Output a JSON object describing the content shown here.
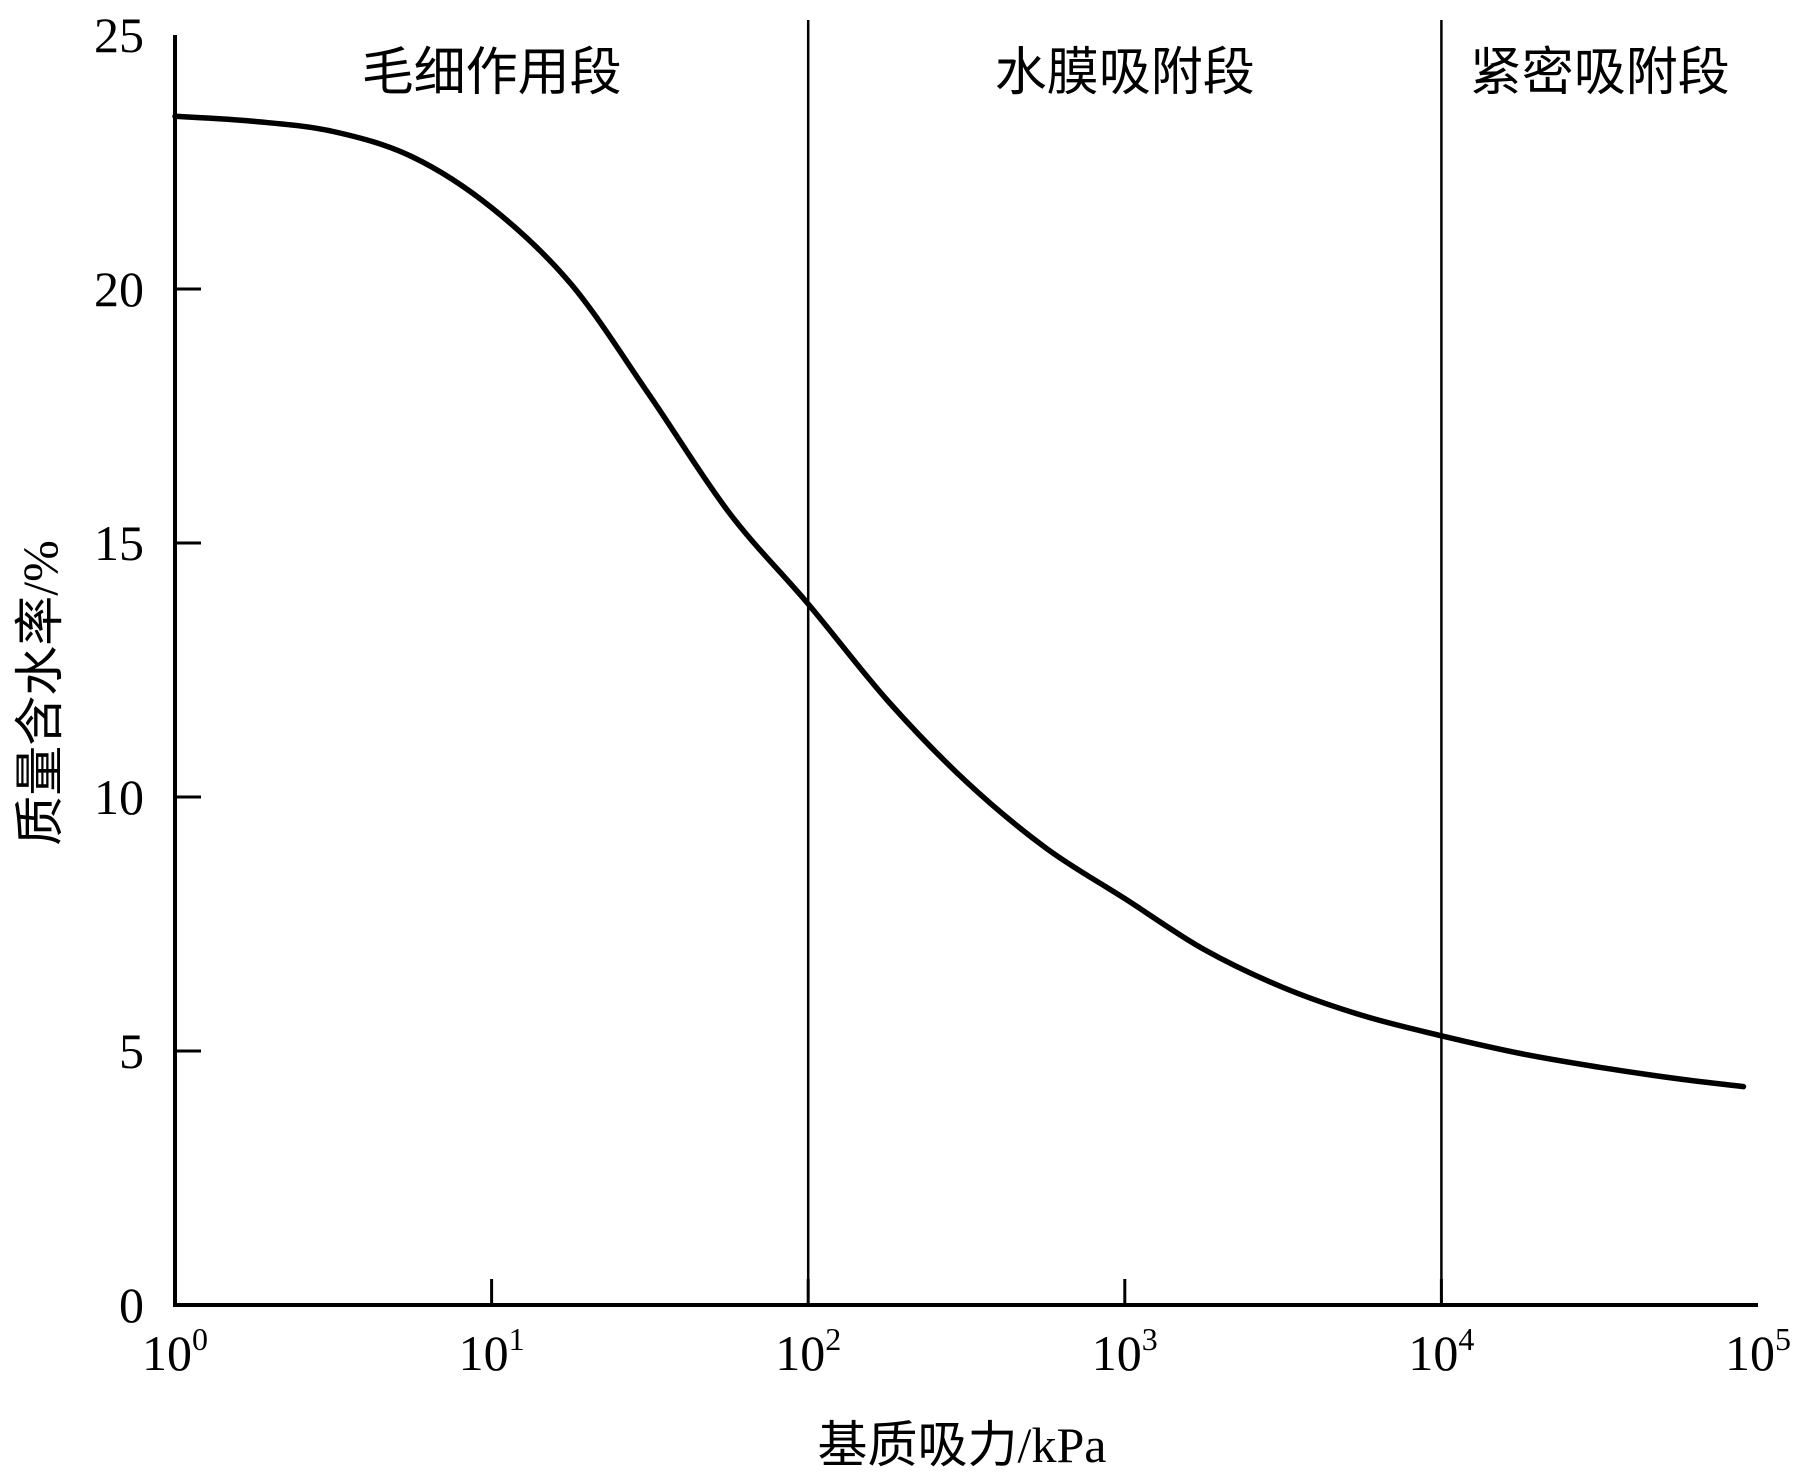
{
  "chart_data": {
    "type": "line",
    "title": "",
    "xlabel": "基质吸力/kPa",
    "ylabel": "质量含水率/%",
    "x_scale": "log",
    "xlim": [
      1,
      100000
    ],
    "ylim": [
      0,
      25
    ],
    "grid": false,
    "legend": "none",
    "x_ticks": [
      {
        "value": 1,
        "base": "10",
        "exp": "0"
      },
      {
        "value": 10,
        "base": "10",
        "exp": "1"
      },
      {
        "value": 100,
        "base": "10",
        "exp": "2"
      },
      {
        "value": 1000,
        "base": "10",
        "exp": "3"
      },
      {
        "value": 10000,
        "base": "10",
        "exp": "4"
      },
      {
        "value": 100000,
        "base": "10",
        "exp": "5"
      }
    ],
    "y_ticks": [
      {
        "value": 0,
        "label": "0"
      },
      {
        "value": 5,
        "label": "5"
      },
      {
        "value": 10,
        "label": "10"
      },
      {
        "value": 15,
        "label": "15"
      },
      {
        "value": 20,
        "label": "20"
      },
      {
        "value": 25,
        "label": "25"
      }
    ],
    "dividers": [
      100,
      10000
    ],
    "regions": [
      {
        "label": "毛细作用段",
        "x": 10
      },
      {
        "label": "水膜吸附段",
        "x": 1000
      },
      {
        "label": "紧密吸附段",
        "x": 31623
      }
    ],
    "series": [
      {
        "color": "#000000",
        "x": [
          1,
          1.78,
          3.16,
          5.62,
          10,
          17.8,
          31.6,
          56.2,
          100,
          178,
          316,
          562,
          1000,
          1778,
          3162,
          5623,
          10000,
          17783,
          31623,
          56234,
          90000
        ],
        "y": [
          23.4,
          23.3,
          23.1,
          22.6,
          21.6,
          20.1,
          17.9,
          15.6,
          13.8,
          11.9,
          10.3,
          9.0,
          8.0,
          7.0,
          6.25,
          5.7,
          5.3,
          4.95,
          4.68,
          4.45,
          4.3
        ]
      }
    ]
  }
}
